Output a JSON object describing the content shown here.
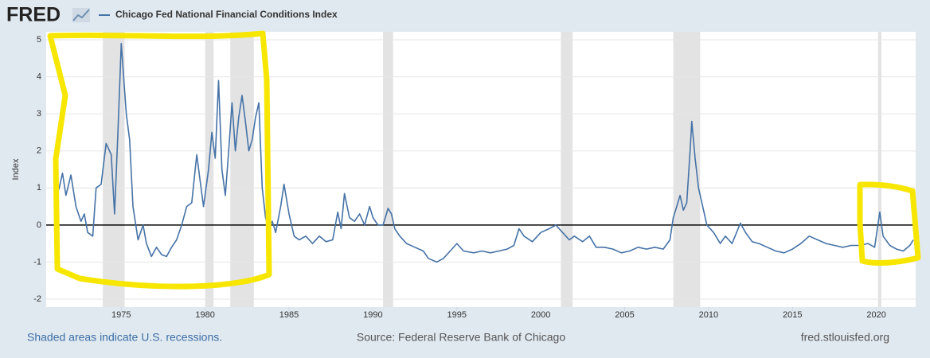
{
  "logo": "FRED",
  "chart_data": {
    "type": "line",
    "y_label": "Index",
    "x": [
      1971.0,
      1971.3,
      1971.5,
      1971.7,
      1972.0,
      1972.3,
      1972.6,
      1972.8,
      1973.0,
      1973.3,
      1973.5,
      1973.8,
      1974.1,
      1974.4,
      1974.6,
      1974.8,
      1975.0,
      1975.3,
      1975.5,
      1975.7,
      1976.0,
      1976.3,
      1976.5,
      1976.8,
      1977.1,
      1977.4,
      1977.7,
      1978.0,
      1978.3,
      1978.6,
      1978.9,
      1979.2,
      1979.5,
      1979.7,
      1979.9,
      1980.2,
      1980.4,
      1980.6,
      1980.8,
      1981.0,
      1981.2,
      1981.4,
      1981.6,
      1981.8,
      1982.0,
      1982.2,
      1982.4,
      1982.6,
      1982.8,
      1983.0,
      1983.2,
      1983.4,
      1983.6,
      1983.8,
      1984.0,
      1984.2,
      1984.5,
      1984.7,
      1985.0,
      1985.3,
      1985.6,
      1986.0,
      1986.4,
      1986.8,
      1987.2,
      1987.6,
      1987.9,
      1988.1,
      1988.3,
      1988.6,
      1988.9,
      1989.2,
      1989.5,
      1989.8,
      1990.0,
      1990.3,
      1990.6,
      1990.9,
      1991.1,
      1991.3,
      1991.6,
      1992.0,
      1992.5,
      1993.0,
      1993.3,
      1993.8,
      1994.2,
      1994.6,
      1995.0,
      1995.4,
      1996.0,
      1996.5,
      1997.0,
      1997.5,
      1998.0,
      1998.4,
      1998.7,
      1999.0,
      1999.5,
      2000.0,
      2000.5,
      2000.9,
      2001.3,
      2001.7,
      2002.0,
      2002.5,
      2002.9,
      2003.3,
      2003.8,
      2004.3,
      2004.8,
      2005.3,
      2005.8,
      2006.3,
      2006.8,
      2007.3,
      2007.7,
      2007.9,
      2008.1,
      2008.3,
      2008.5,
      2008.7,
      2008.9,
      2009.0,
      2009.2,
      2009.4,
      2009.6,
      2009.9,
      2010.3,
      2010.7,
      2011.0,
      2011.4,
      2011.9,
      2012.2,
      2012.6,
      2013.0,
      2013.5,
      2014.0,
      2014.5,
      2015.0,
      2015.5,
      2016.0,
      2016.5,
      2017.0,
      2017.5,
      2018.0,
      2018.5,
      2019.0,
      2019.5,
      2019.9,
      2020.2,
      2020.4,
      2020.8,
      2021.2,
      2021.6,
      2022.0,
      2022.2
    ],
    "series": [
      {
        "name": "Chicago Fed National Financial Conditions Index",
        "color": "#4572a7",
        "values": [
          0.55,
          1.0,
          1.4,
          0.8,
          1.35,
          0.5,
          0.1,
          0.3,
          -0.2,
          -0.3,
          1.0,
          1.1,
          2.2,
          1.9,
          0.3,
          2.5,
          4.9,
          3.0,
          2.3,
          0.5,
          -0.4,
          0.0,
          -0.5,
          -0.85,
          -0.6,
          -0.8,
          -0.85,
          -0.6,
          -0.4,
          0.0,
          0.5,
          0.6,
          1.9,
          1.2,
          0.5,
          1.5,
          2.5,
          1.8,
          3.9,
          1.5,
          0.8,
          2.0,
          3.3,
          2.0,
          2.9,
          3.5,
          2.8,
          2.0,
          2.3,
          2.9,
          3.3,
          1.0,
          0.2,
          -0.1,
          0.1,
          -0.2,
          0.5,
          1.1,
          0.3,
          -0.3,
          -0.4,
          -0.3,
          -0.5,
          -0.3,
          -0.45,
          -0.4,
          0.35,
          -0.1,
          0.85,
          0.2,
          0.1,
          0.3,
          0.0,
          0.5,
          0.2,
          0.0,
          0.0,
          0.45,
          0.3,
          -0.1,
          -0.3,
          -0.5,
          -0.6,
          -0.7,
          -0.9,
          -1.0,
          -0.9,
          -0.7,
          -0.5,
          -0.7,
          -0.75,
          -0.7,
          -0.75,
          -0.7,
          -0.65,
          -0.55,
          -0.1,
          -0.3,
          -0.45,
          -0.2,
          -0.1,
          0.0,
          -0.2,
          -0.4,
          -0.3,
          -0.45,
          -0.3,
          -0.6,
          -0.6,
          -0.65,
          -0.75,
          -0.7,
          -0.6,
          -0.65,
          -0.6,
          -0.65,
          -0.4,
          0.2,
          0.5,
          0.8,
          0.4,
          0.6,
          2.0,
          2.8,
          1.8,
          1.0,
          0.6,
          0.0,
          -0.2,
          -0.5,
          -0.3,
          -0.5,
          0.05,
          -0.2,
          -0.45,
          -0.5,
          -0.6,
          -0.7,
          -0.75,
          -0.65,
          -0.5,
          -0.3,
          -0.4,
          -0.5,
          -0.55,
          -0.6,
          -0.55,
          -0.55,
          -0.5,
          -0.6,
          0.35,
          -0.3,
          -0.55,
          -0.65,
          -0.7,
          -0.55,
          -0.4
        ]
      }
    ],
    "recessions": [
      [
        1973.9,
        1975.2
      ],
      [
        1980.0,
        1980.5
      ],
      [
        1981.5,
        1982.9
      ],
      [
        1990.6,
        1991.2
      ],
      [
        2001.2,
        2001.9
      ],
      [
        2007.9,
        2009.5
      ],
      [
        2020.1,
        2020.3
      ]
    ],
    "reference_line": 0,
    "xlim": [
      1971.0,
      2022.2
    ],
    "xticks": [
      1975,
      1980,
      1985,
      1990,
      1995,
      2000,
      2005,
      2010,
      2015,
      2020
    ],
    "ylim": [
      -2,
      5
    ],
    "yticks": [
      -2,
      -1,
      0,
      1,
      2,
      3,
      4,
      5
    ],
    "grid": true,
    "recession_note": "Shaded areas indicate U.S. recessions.",
    "source": "Source: Federal Reserve Bank of Chicago",
    "site": "fred.stlouisfed.org"
  }
}
